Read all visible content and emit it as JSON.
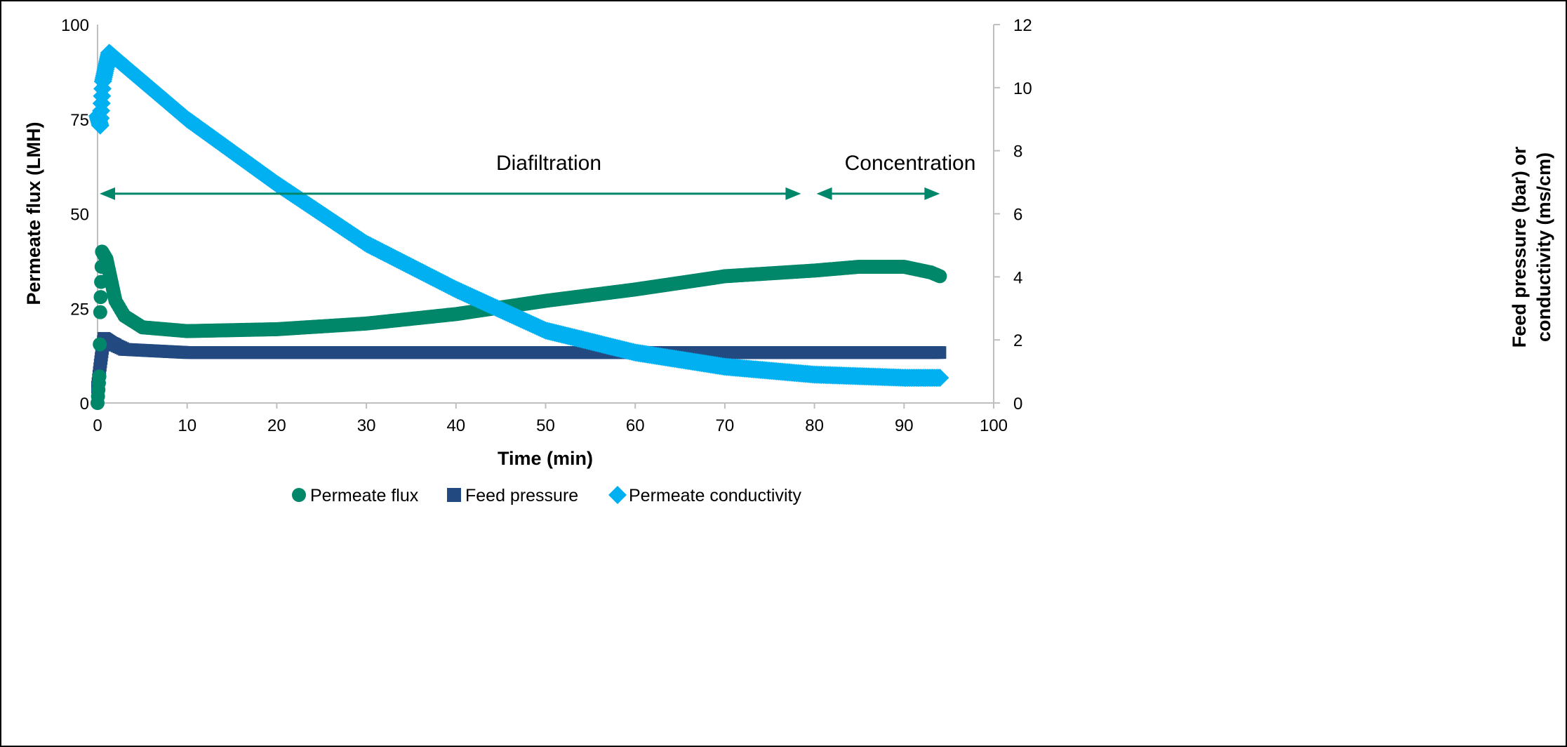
{
  "chart_data": {
    "type": "scatter",
    "xlabel": "Time (min)",
    "ylabel_left": "Permeate flux (LMH)",
    "ylabel_right": [
      "Feed pressure (bar) or",
      "conductivity (ms/cm)"
    ],
    "xlim": [
      0,
      100
    ],
    "ylim_left": [
      0,
      100
    ],
    "ylim_right": [
      0,
      12
    ],
    "x_ticks": [
      "0",
      "10",
      "20",
      "30",
      "40",
      "50",
      "60",
      "70",
      "80",
      "90",
      "100"
    ],
    "y_left_ticks": [
      "0",
      "25",
      "50",
      "75",
      "100"
    ],
    "y_right_ticks": [
      "0",
      "2",
      "4",
      "6",
      "8",
      "10",
      "12"
    ],
    "grid": false,
    "legend_position": "bottom",
    "series": [
      {
        "name": "Permeate flux",
        "axis": "left",
        "marker": "circle",
        "color": "#00876a",
        "points": [
          [
            0,
            0
          ],
          [
            0.2,
            7
          ],
          [
            0.3,
            24
          ],
          [
            0.4,
            32
          ],
          [
            0.5,
            40
          ],
          [
            1,
            38
          ],
          [
            2,
            27
          ],
          [
            3,
            23
          ],
          [
            5,
            20
          ],
          [
            10,
            19
          ],
          [
            20,
            19.5
          ],
          [
            30,
            21
          ],
          [
            40,
            23.5
          ],
          [
            50,
            27
          ],
          [
            60,
            30
          ],
          [
            70,
            33.5
          ],
          [
            80,
            35
          ],
          [
            85,
            36
          ],
          [
            90,
            36
          ],
          [
            93,
            34.5
          ],
          [
            94,
            33.5
          ]
        ]
      },
      {
        "name": "Feed pressure",
        "axis": "right",
        "marker": "square",
        "color": "#234a80",
        "points": [
          [
            0,
            0.5
          ],
          [
            0.3,
            1.2
          ],
          [
            0.7,
            2.05
          ],
          [
            1.5,
            1.9
          ],
          [
            3,
            1.7
          ],
          [
            10,
            1.6
          ],
          [
            50,
            1.6
          ],
          [
            94,
            1.6
          ]
        ]
      },
      {
        "name": "Permeate conductivity",
        "axis": "right",
        "marker": "diamond",
        "color": "#00b0f0",
        "points": [
          [
            0,
            9.1
          ],
          [
            0.3,
            8.8
          ],
          [
            0.6,
            10.2
          ],
          [
            1.3,
            11.1
          ],
          [
            10,
            9.0
          ],
          [
            20,
            6.95
          ],
          [
            30,
            5.05
          ],
          [
            40,
            3.6
          ],
          [
            50,
            2.3
          ],
          [
            60,
            1.6
          ],
          [
            70,
            1.15
          ],
          [
            80,
            0.9
          ],
          [
            90,
            0.8
          ],
          [
            94,
            0.8
          ]
        ]
      }
    ],
    "annotations": [
      {
        "text": "Diafiltration",
        "x_start": 0,
        "x_end": 78.5,
        "y_left": 55.3
      },
      {
        "text": "Concentration",
        "x_start": 80,
        "x_end": 94,
        "y_left": 55.3
      }
    ]
  }
}
